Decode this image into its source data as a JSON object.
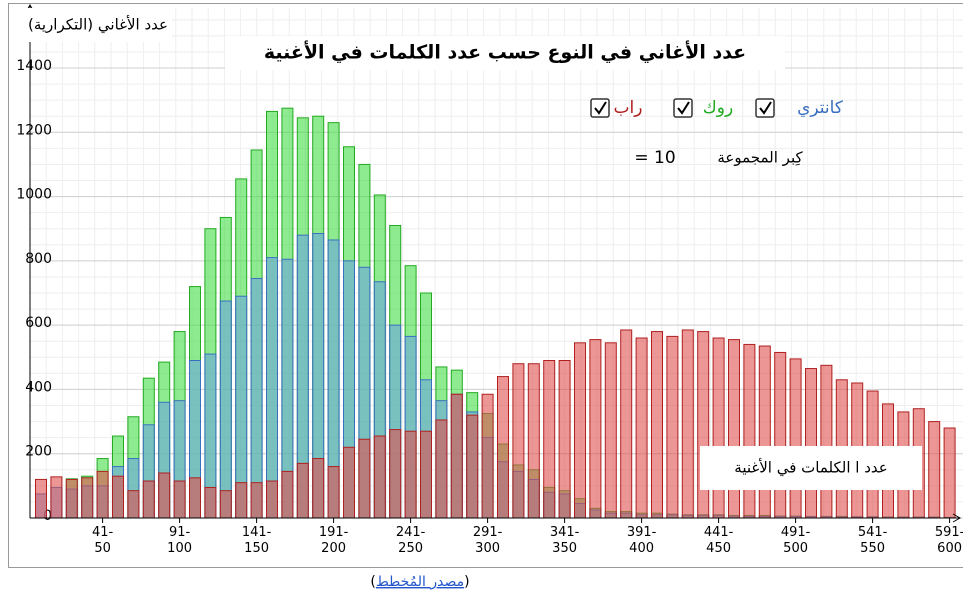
{
  "chart_data": {
    "type": "bar",
    "title": "عدد الأغاني في النوع حسب عدد الكلمات في الأغنية",
    "y_label": "عدد الأغاني (التكرارية)",
    "x_label": "عدد ا الكلمات في الأغنية",
    "group_size_label": "كِبر المجموعة",
    "group_size": "= 10",
    "categories": [
      null,
      null,
      null,
      null,
      "41-50",
      null,
      null,
      null,
      null,
      "91-100",
      null,
      null,
      null,
      null,
      "141-150",
      null,
      null,
      null,
      null,
      "191-200",
      null,
      null,
      null,
      null,
      "241-250",
      null,
      null,
      null,
      null,
      "291-300",
      null,
      null,
      null,
      null,
      "341-350",
      null,
      null,
      null,
      null,
      "391-400",
      null,
      null,
      null,
      null,
      "441-450",
      null,
      null,
      null,
      null,
      "491-500",
      null,
      null,
      null,
      null,
      "541-550",
      null,
      null,
      null,
      null,
      "591-600"
    ],
    "series": [
      {
        "name": "روك",
        "color": "#44dd44",
        "stroke": "#22aa22",
        "values": [
          0,
          0,
          122,
          130,
          185,
          255,
          315,
          435,
          485,
          580,
          720,
          900,
          935,
          1055,
          1145,
          1265,
          1275,
          1245,
          1250,
          1230,
          1155,
          1100,
          1005,
          910,
          785,
          700,
          470,
          460,
          390,
          325,
          230,
          165,
          150,
          95,
          85,
          60,
          30,
          20,
          20,
          15,
          15,
          12,
          10,
          10,
          10,
          8,
          8,
          8,
          6,
          6,
          5,
          5,
          5,
          4,
          4,
          3,
          3,
          3,
          3,
          2
        ]
      },
      {
        "name": "كانتري",
        "color": "#6aa5e0",
        "stroke": "#3a6fc0",
        "values": [
          75,
          95,
          90,
          100,
          100,
          160,
          185,
          290,
          360,
          365,
          490,
          510,
          675,
          690,
          745,
          810,
          805,
          880,
          885,
          865,
          800,
          780,
          735,
          600,
          565,
          430,
          365,
          385,
          330,
          250,
          175,
          145,
          120,
          80,
          75,
          45,
          25,
          15,
          15,
          10,
          10,
          10,
          8,
          8,
          8,
          6,
          5,
          5,
          5,
          5,
          4,
          4,
          3,
          3,
          3,
          2,
          2,
          2,
          2,
          1
        ]
      },
      {
        "name": "راب",
        "color": "#e05050",
        "stroke": "#b02020",
        "values": [
          120,
          128,
          120,
          125,
          145,
          130,
          85,
          115,
          140,
          115,
          125,
          95,
          85,
          110,
          110,
          115,
          145,
          170,
          185,
          160,
          220,
          245,
          255,
          275,
          270,
          270,
          305,
          385,
          320,
          385,
          440,
          480,
          480,
          490,
          490,
          545,
          555,
          545,
          585,
          560,
          580,
          565,
          585,
          580,
          560,
          555,
          540,
          535,
          515,
          495,
          465,
          475,
          430,
          420,
          395,
          355,
          330,
          340,
          300,
          280
        ]
      }
    ],
    "ylim": [
      0,
      1400
    ],
    "yticks": [
      0,
      200,
      400,
      600,
      800,
      1000,
      1200,
      1400
    ],
    "grid": true,
    "source": {
      "open": "(",
      "link": "مصدر المُخطط",
      "close": ")"
    }
  }
}
